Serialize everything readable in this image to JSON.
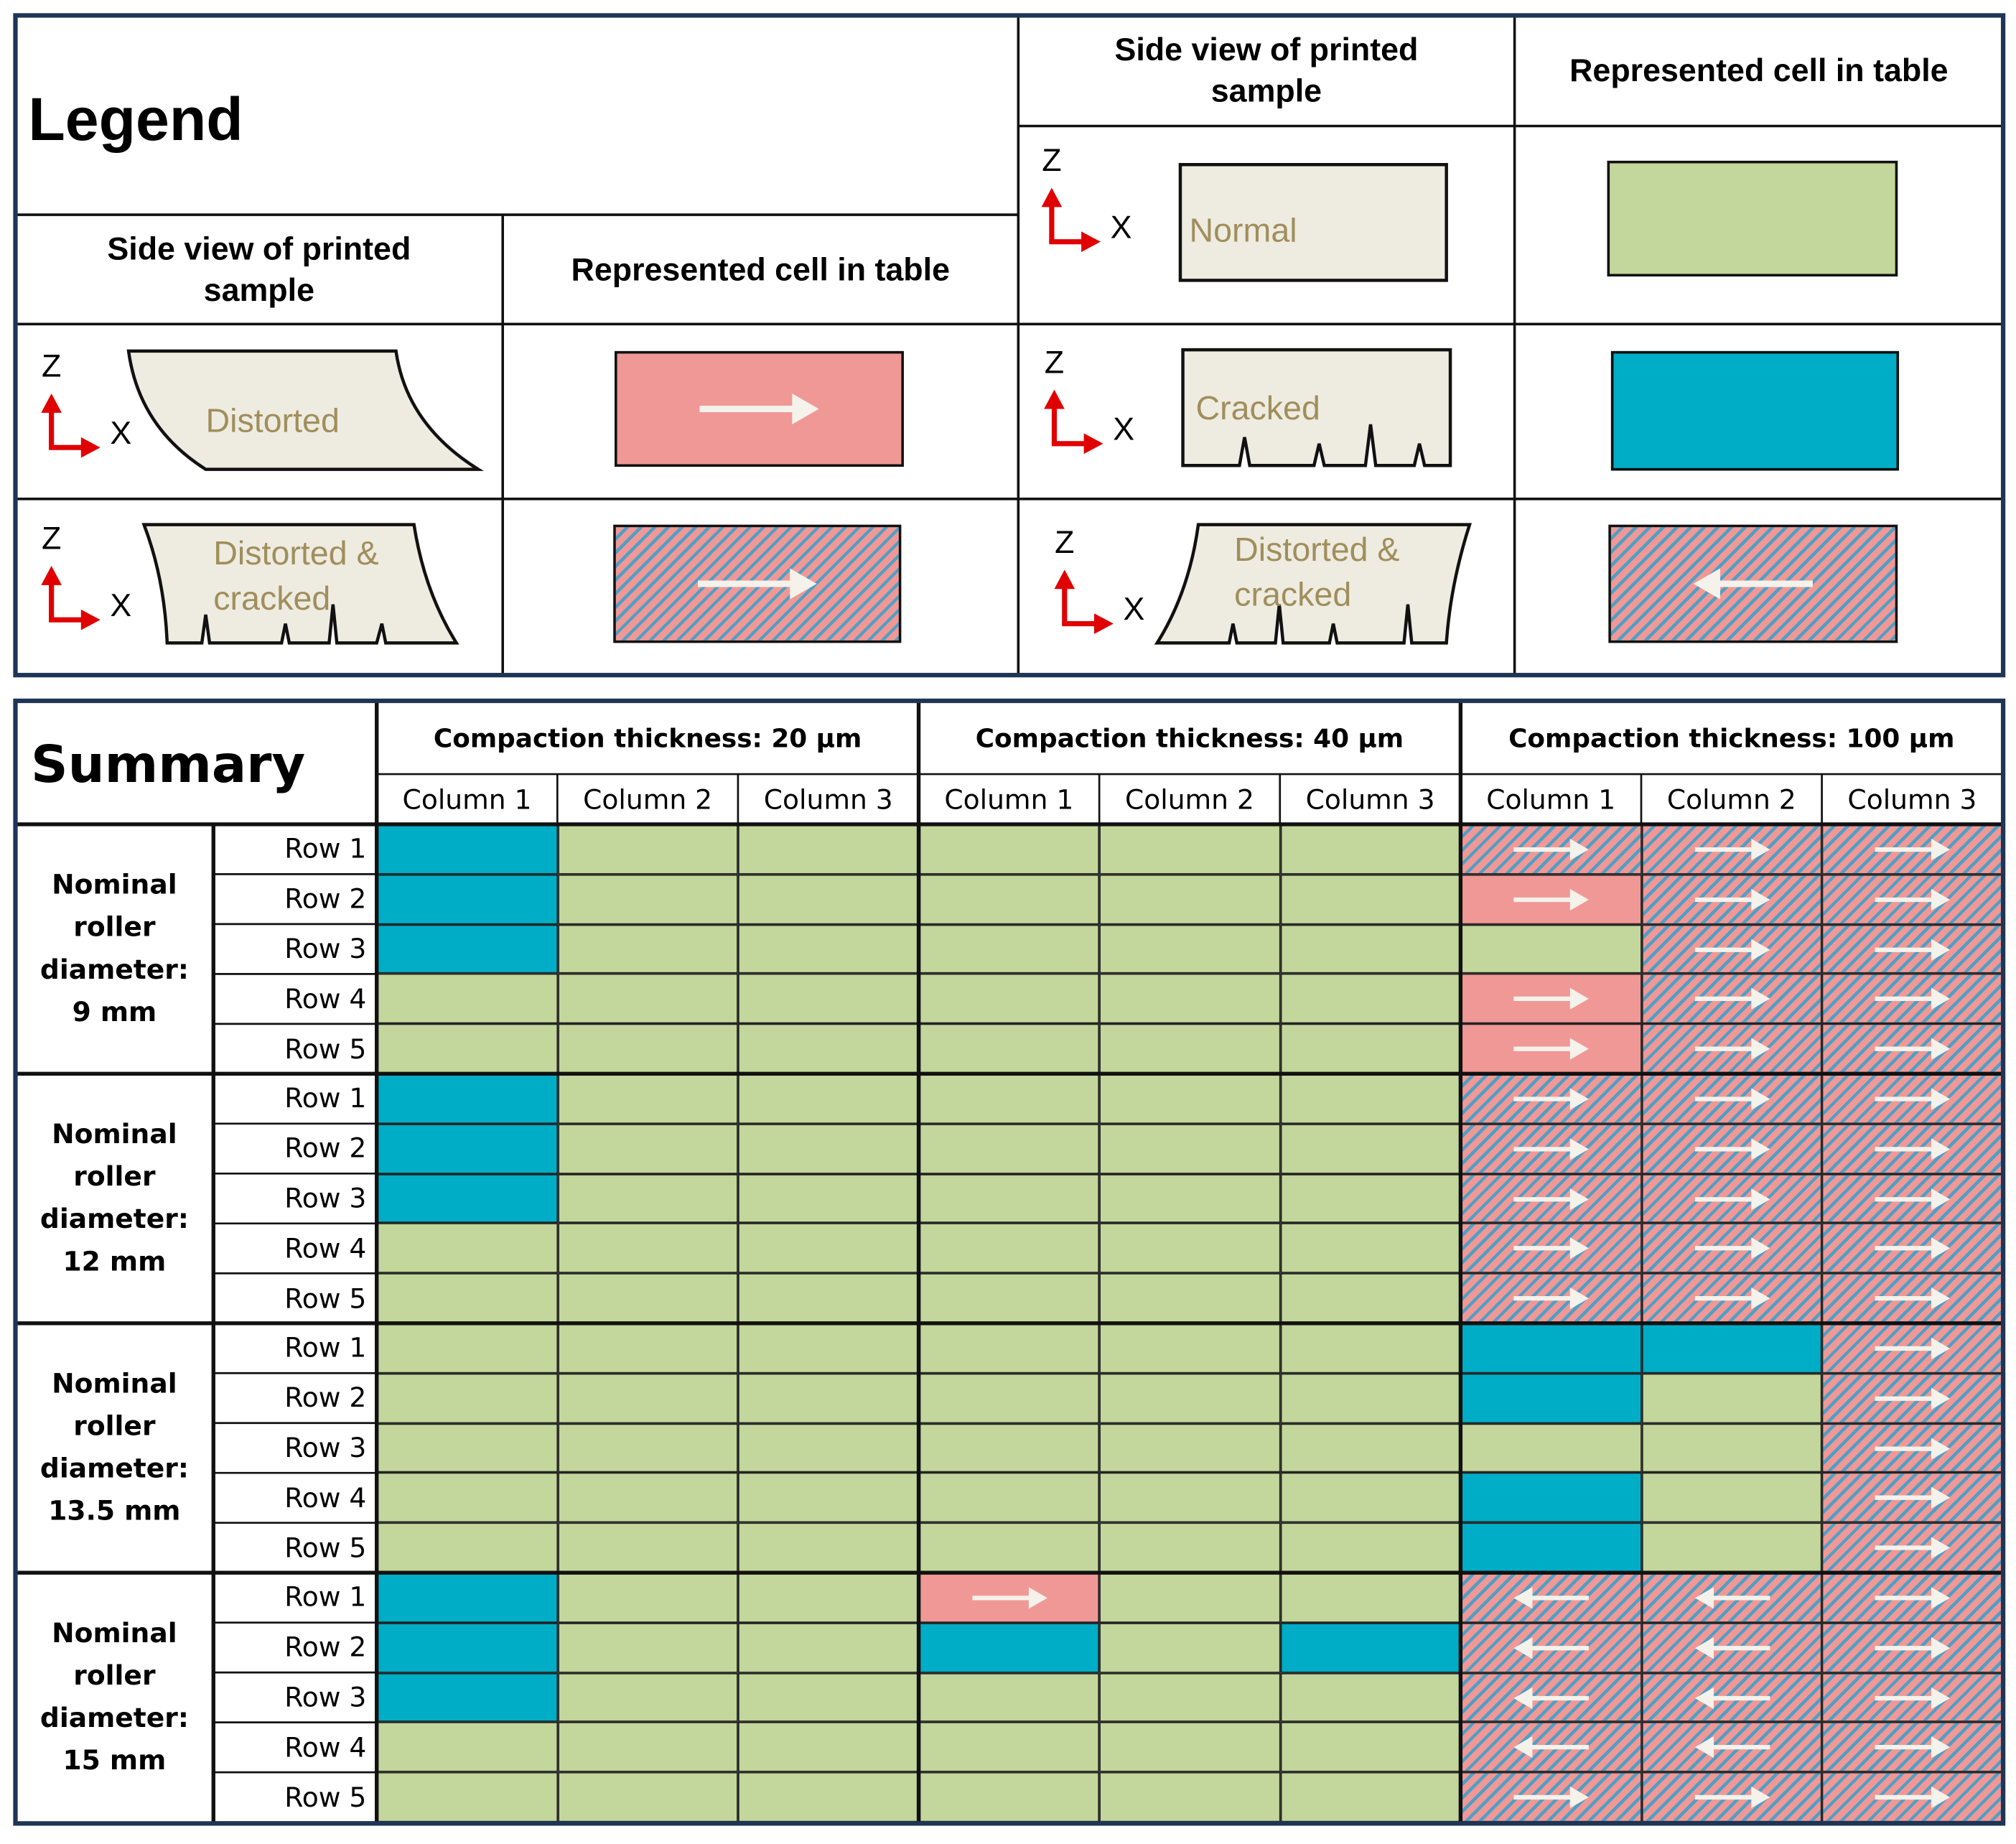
{
  "legend": {
    "title": "Legend",
    "headers": [
      {
        "sample": "Side view of printed sample",
        "cell": "Represented cell in table"
      },
      {
        "sample": "Side view of printed sample",
        "cell": "Represented cell in table"
      }
    ],
    "axis": {
      "z": "Z",
      "x": "X"
    },
    "items": [
      {
        "label": "Normal",
        "color": "#c3d69b"
      },
      {
        "label": "Cracked",
        "color": "#00adc6"
      },
      {
        "label": "Distorted",
        "color": "#f09896",
        "arrow": "right"
      },
      {
        "label": "Distorted & cracked",
        "color": "#f09896",
        "stripe": "#4f9fc6",
        "hatch": true,
        "arrow": "right"
      },
      {
        "label": "Distorted & cracked",
        "color": "#f09896",
        "stripe": "#4f9fc6",
        "hatch": true,
        "arrow": "left"
      }
    ]
  },
  "summary": {
    "title": "Summary",
    "groups": [
      {
        "label": "Compaction thickness: 20 µm",
        "columns": [
          "Column 1",
          "Column 2",
          "Column 3"
        ]
      },
      {
        "label": "Compaction thickness: 40 µm",
        "columns": [
          "Column 1",
          "Column 2",
          "Column 3"
        ]
      },
      {
        "label": "Compaction thickness: 100 µm",
        "columns": [
          "Column 1",
          "Column 2",
          "Column 3"
        ]
      }
    ],
    "blocks": [
      {
        "label": "Nominal roller diameter: 9 mm",
        "rows": [
          "Row 1",
          "Row 2",
          "Row 3",
          "Row 4",
          "Row 5"
        ],
        "cells": [
          [
            1,
            0,
            0,
            0,
            0,
            0,
            3,
            3,
            3
          ],
          [
            1,
            0,
            0,
            0,
            0,
            0,
            2,
            3,
            3
          ],
          [
            1,
            0,
            0,
            0,
            0,
            0,
            0,
            3,
            3
          ],
          [
            0,
            0,
            0,
            0,
            0,
            0,
            2,
            3,
            3
          ],
          [
            0,
            0,
            0,
            0,
            0,
            0,
            2,
            3,
            3
          ]
        ]
      },
      {
        "label": "Nominal roller diameter: 12 mm",
        "rows": [
          "Row 1",
          "Row 2",
          "Row 3",
          "Row 4",
          "Row 5"
        ],
        "cells": [
          [
            1,
            0,
            0,
            0,
            0,
            0,
            3,
            3,
            3
          ],
          [
            1,
            0,
            0,
            0,
            0,
            0,
            3,
            3,
            3
          ],
          [
            1,
            0,
            0,
            0,
            0,
            0,
            3,
            3,
            3
          ],
          [
            0,
            0,
            0,
            0,
            0,
            0,
            3,
            3,
            3
          ],
          [
            0,
            0,
            0,
            0,
            0,
            0,
            3,
            3,
            3
          ]
        ]
      },
      {
        "label": "Nominal roller diameter: 13.5 mm",
        "rows": [
          "Row 1",
          "Row 2",
          "Row 3",
          "Row 4",
          "Row 5"
        ],
        "cells": [
          [
            0,
            0,
            0,
            0,
            0,
            0,
            1,
            1,
            3
          ],
          [
            0,
            0,
            0,
            0,
            0,
            0,
            1,
            0,
            3
          ],
          [
            0,
            0,
            0,
            0,
            0,
            0,
            0,
            0,
            3
          ],
          [
            0,
            0,
            0,
            0,
            0,
            0,
            1,
            0,
            3
          ],
          [
            0,
            0,
            0,
            0,
            0,
            0,
            1,
            0,
            3
          ]
        ]
      },
      {
        "label": "Nominal roller diameter: 15 mm",
        "rows": [
          "Row 1",
          "Row 2",
          "Row 3",
          "Row 4",
          "Row 5"
        ],
        "cells": [
          [
            1,
            0,
            0,
            2,
            0,
            0,
            4,
            4,
            3
          ],
          [
            1,
            0,
            0,
            1,
            0,
            1,
            4,
            4,
            3
          ],
          [
            1,
            0,
            0,
            0,
            0,
            0,
            4,
            4,
            3
          ],
          [
            0,
            0,
            0,
            0,
            0,
            0,
            4,
            4,
            3
          ],
          [
            0,
            0,
            0,
            0,
            0,
            0,
            3,
            3,
            3
          ]
        ]
      }
    ]
  }
}
